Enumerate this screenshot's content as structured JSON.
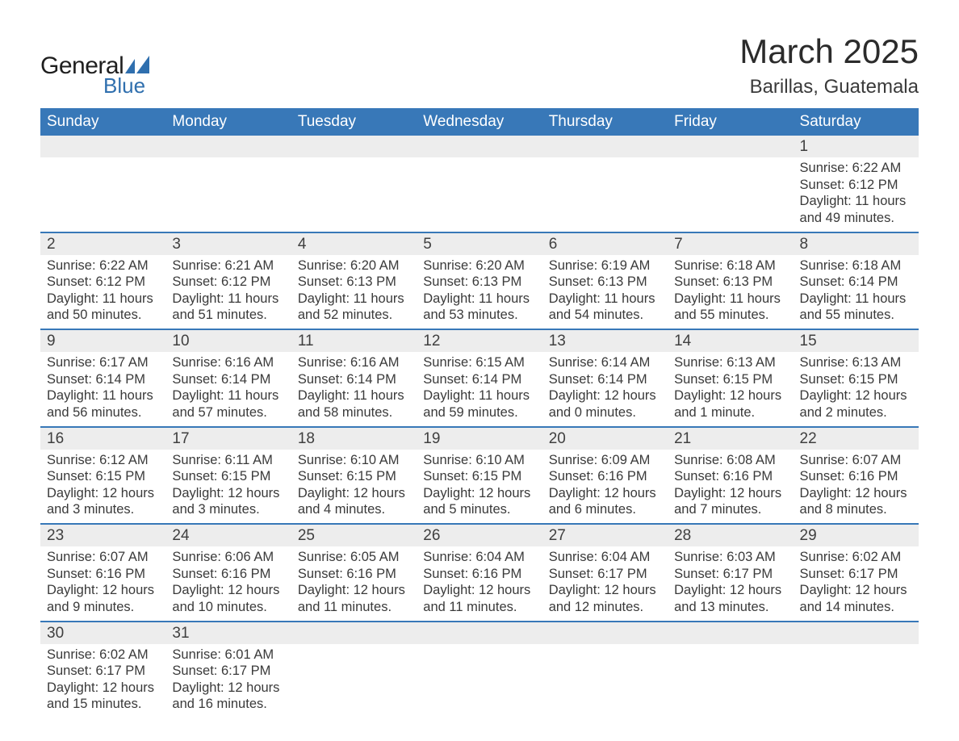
{
  "colors": {
    "header_bg": "#3878b8",
    "header_text": "#ffffff",
    "daynum_bg": "#ededed",
    "row_divider": "#3878b8",
    "body_text": "#3a3a3a",
    "logo_blue": "#2f6fae",
    "logo_dark": "#1f1f1f",
    "page_bg": "#ffffff"
  },
  "typography": {
    "title_fontsize": 42,
    "subtitle_fontsize": 24,
    "dayhead_fontsize": 19,
    "daynum_fontsize": 19,
    "cell_fontsize": 16.5,
    "logo_general_fontsize": 30,
    "logo_blue_fontsize": 26
  },
  "logo": {
    "word1": "General",
    "word2": "Blue"
  },
  "title": "March 2025",
  "subtitle": "Barillas, Guatemala",
  "day_headers": [
    "Sunday",
    "Monday",
    "Tuesday",
    "Wednesday",
    "Thursday",
    "Friday",
    "Saturday"
  ],
  "weeks": [
    {
      "nums": [
        "",
        "",
        "",
        "",
        "",
        "",
        "1"
      ],
      "cells": [
        null,
        null,
        null,
        null,
        null,
        null,
        {
          "sunrise": "Sunrise: 6:22 AM",
          "sunset": "Sunset: 6:12 PM",
          "day1": "Daylight: 11 hours",
          "day2": "and 49 minutes."
        }
      ]
    },
    {
      "nums": [
        "2",
        "3",
        "4",
        "5",
        "6",
        "7",
        "8"
      ],
      "cells": [
        {
          "sunrise": "Sunrise: 6:22 AM",
          "sunset": "Sunset: 6:12 PM",
          "day1": "Daylight: 11 hours",
          "day2": "and 50 minutes."
        },
        {
          "sunrise": "Sunrise: 6:21 AM",
          "sunset": "Sunset: 6:12 PM",
          "day1": "Daylight: 11 hours",
          "day2": "and 51 minutes."
        },
        {
          "sunrise": "Sunrise: 6:20 AM",
          "sunset": "Sunset: 6:13 PM",
          "day1": "Daylight: 11 hours",
          "day2": "and 52 minutes."
        },
        {
          "sunrise": "Sunrise: 6:20 AM",
          "sunset": "Sunset: 6:13 PM",
          "day1": "Daylight: 11 hours",
          "day2": "and 53 minutes."
        },
        {
          "sunrise": "Sunrise: 6:19 AM",
          "sunset": "Sunset: 6:13 PM",
          "day1": "Daylight: 11 hours",
          "day2": "and 54 minutes."
        },
        {
          "sunrise": "Sunrise: 6:18 AM",
          "sunset": "Sunset: 6:13 PM",
          "day1": "Daylight: 11 hours",
          "day2": "and 55 minutes."
        },
        {
          "sunrise": "Sunrise: 6:18 AM",
          "sunset": "Sunset: 6:14 PM",
          "day1": "Daylight: 11 hours",
          "day2": "and 55 minutes."
        }
      ]
    },
    {
      "nums": [
        "9",
        "10",
        "11",
        "12",
        "13",
        "14",
        "15"
      ],
      "cells": [
        {
          "sunrise": "Sunrise: 6:17 AM",
          "sunset": "Sunset: 6:14 PM",
          "day1": "Daylight: 11 hours",
          "day2": "and 56 minutes."
        },
        {
          "sunrise": "Sunrise: 6:16 AM",
          "sunset": "Sunset: 6:14 PM",
          "day1": "Daylight: 11 hours",
          "day2": "and 57 minutes."
        },
        {
          "sunrise": "Sunrise: 6:16 AM",
          "sunset": "Sunset: 6:14 PM",
          "day1": "Daylight: 11 hours",
          "day2": "and 58 minutes."
        },
        {
          "sunrise": "Sunrise: 6:15 AM",
          "sunset": "Sunset: 6:14 PM",
          "day1": "Daylight: 11 hours",
          "day2": "and 59 minutes."
        },
        {
          "sunrise": "Sunrise: 6:14 AM",
          "sunset": "Sunset: 6:14 PM",
          "day1": "Daylight: 12 hours",
          "day2": "and 0 minutes."
        },
        {
          "sunrise": "Sunrise: 6:13 AM",
          "sunset": "Sunset: 6:15 PM",
          "day1": "Daylight: 12 hours",
          "day2": "and 1 minute."
        },
        {
          "sunrise": "Sunrise: 6:13 AM",
          "sunset": "Sunset: 6:15 PM",
          "day1": "Daylight: 12 hours",
          "day2": "and 2 minutes."
        }
      ]
    },
    {
      "nums": [
        "16",
        "17",
        "18",
        "19",
        "20",
        "21",
        "22"
      ],
      "cells": [
        {
          "sunrise": "Sunrise: 6:12 AM",
          "sunset": "Sunset: 6:15 PM",
          "day1": "Daylight: 12 hours",
          "day2": "and 3 minutes."
        },
        {
          "sunrise": "Sunrise: 6:11 AM",
          "sunset": "Sunset: 6:15 PM",
          "day1": "Daylight: 12 hours",
          "day2": "and 3 minutes."
        },
        {
          "sunrise": "Sunrise: 6:10 AM",
          "sunset": "Sunset: 6:15 PM",
          "day1": "Daylight: 12 hours",
          "day2": "and 4 minutes."
        },
        {
          "sunrise": "Sunrise: 6:10 AM",
          "sunset": "Sunset: 6:15 PM",
          "day1": "Daylight: 12 hours",
          "day2": "and 5 minutes."
        },
        {
          "sunrise": "Sunrise: 6:09 AM",
          "sunset": "Sunset: 6:16 PM",
          "day1": "Daylight: 12 hours",
          "day2": "and 6 minutes."
        },
        {
          "sunrise": "Sunrise: 6:08 AM",
          "sunset": "Sunset: 6:16 PM",
          "day1": "Daylight: 12 hours",
          "day2": "and 7 minutes."
        },
        {
          "sunrise": "Sunrise: 6:07 AM",
          "sunset": "Sunset: 6:16 PM",
          "day1": "Daylight: 12 hours",
          "day2": "and 8 minutes."
        }
      ]
    },
    {
      "nums": [
        "23",
        "24",
        "25",
        "26",
        "27",
        "28",
        "29"
      ],
      "cells": [
        {
          "sunrise": "Sunrise: 6:07 AM",
          "sunset": "Sunset: 6:16 PM",
          "day1": "Daylight: 12 hours",
          "day2": "and 9 minutes."
        },
        {
          "sunrise": "Sunrise: 6:06 AM",
          "sunset": "Sunset: 6:16 PM",
          "day1": "Daylight: 12 hours",
          "day2": "and 10 minutes."
        },
        {
          "sunrise": "Sunrise: 6:05 AM",
          "sunset": "Sunset: 6:16 PM",
          "day1": "Daylight: 12 hours",
          "day2": "and 11 minutes."
        },
        {
          "sunrise": "Sunrise: 6:04 AM",
          "sunset": "Sunset: 6:16 PM",
          "day1": "Daylight: 12 hours",
          "day2": "and 11 minutes."
        },
        {
          "sunrise": "Sunrise: 6:04 AM",
          "sunset": "Sunset: 6:17 PM",
          "day1": "Daylight: 12 hours",
          "day2": "and 12 minutes."
        },
        {
          "sunrise": "Sunrise: 6:03 AM",
          "sunset": "Sunset: 6:17 PM",
          "day1": "Daylight: 12 hours",
          "day2": "and 13 minutes."
        },
        {
          "sunrise": "Sunrise: 6:02 AM",
          "sunset": "Sunset: 6:17 PM",
          "day1": "Daylight: 12 hours",
          "day2": "and 14 minutes."
        }
      ]
    },
    {
      "nums": [
        "30",
        "31",
        "",
        "",
        "",
        "",
        ""
      ],
      "cells": [
        {
          "sunrise": "Sunrise: 6:02 AM",
          "sunset": "Sunset: 6:17 PM",
          "day1": "Daylight: 12 hours",
          "day2": "and 15 minutes."
        },
        {
          "sunrise": "Sunrise: 6:01 AM",
          "sunset": "Sunset: 6:17 PM",
          "day1": "Daylight: 12 hours",
          "day2": "and 16 minutes."
        },
        null,
        null,
        null,
        null,
        null
      ]
    }
  ]
}
